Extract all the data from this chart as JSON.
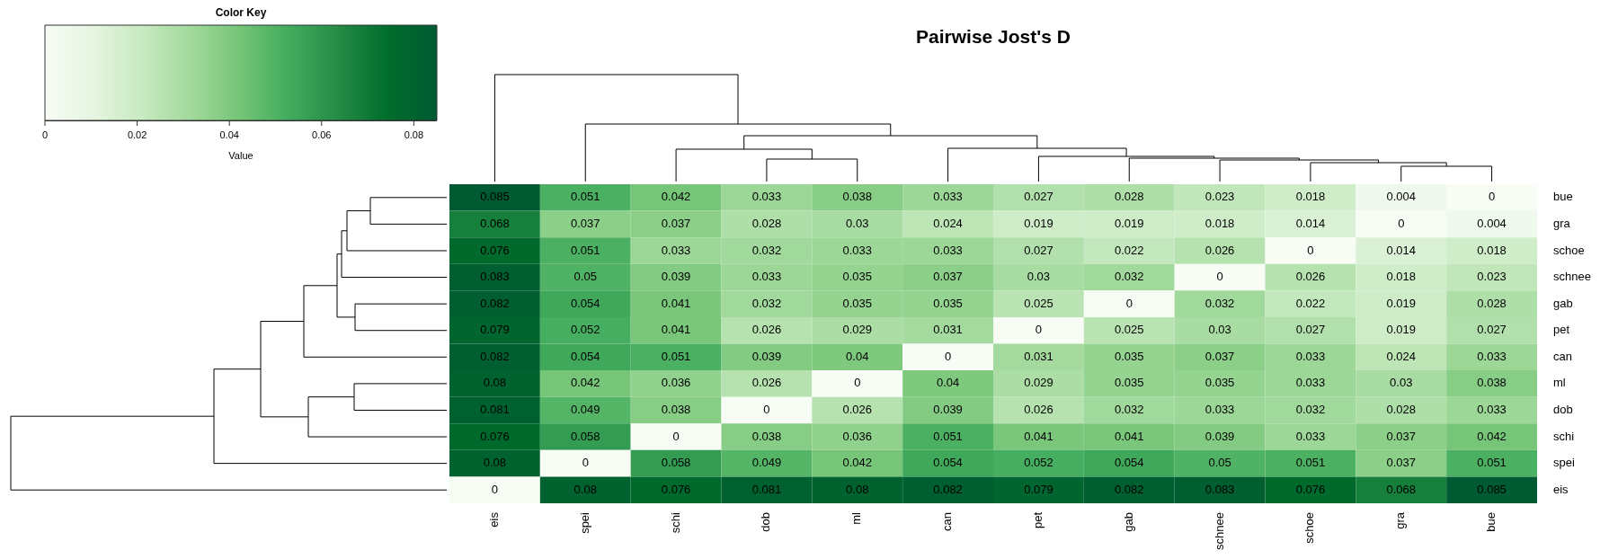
{
  "chart_data": {
    "type": "heatmap",
    "title": "Pairwise Jost's D",
    "legend_title": "Color Key",
    "clabel": "Value",
    "categories": [
      "eis",
      "spei",
      "schi",
      "dob",
      "ml",
      "can",
      "pet",
      "gab",
      "schnee",
      "schoe",
      "gra",
      "bue"
    ],
    "y_categories": [
      "bue",
      "gra",
      "schoe",
      "schnee",
      "gab",
      "pet",
      "can",
      "ml",
      "dob",
      "schi",
      "spei",
      "eis"
    ],
    "cells": [
      [
        0.085,
        0.051,
        0.042,
        0.033,
        0.038,
        0.033,
        0.027,
        0.028,
        0.023,
        0.018,
        0.004,
        0
      ],
      [
        0.068,
        0.037,
        0.037,
        0.028,
        0.03,
        0.024,
        0.019,
        0.019,
        0.018,
        0.014,
        0,
        0.004
      ],
      [
        0.076,
        0.051,
        0.033,
        0.032,
        0.033,
        0.033,
        0.027,
        0.022,
        0.026,
        0,
        0.014,
        0.018
      ],
      [
        0.083,
        0.05,
        0.039,
        0.033,
        0.035,
        0.037,
        0.03,
        0.032,
        0,
        0.026,
        0.018,
        0.023
      ],
      [
        0.082,
        0.054,
        0.041,
        0.032,
        0.035,
        0.035,
        0.025,
        0,
        0.032,
        0.022,
        0.019,
        0.028
      ],
      [
        0.079,
        0.052,
        0.041,
        0.026,
        0.029,
        0.031,
        0,
        0.025,
        0.03,
        0.027,
        0.019,
        0.027
      ],
      [
        0.082,
        0.054,
        0.051,
        0.039,
        0.04,
        0,
        0.031,
        0.035,
        0.037,
        0.033,
        0.024,
        0.033
      ],
      [
        0.08,
        0.042,
        0.036,
        0.026,
        0,
        0.04,
        0.029,
        0.035,
        0.035,
        0.033,
        0.03,
        0.038
      ],
      [
        0.081,
        0.049,
        0.038,
        0,
        0.026,
        0.039,
        0.026,
        0.032,
        0.033,
        0.032,
        0.028,
        0.033
      ],
      [
        0.076,
        0.058,
        0,
        0.038,
        0.036,
        0.051,
        0.041,
        0.041,
        0.039,
        0.033,
        0.037,
        0.042
      ],
      [
        0.08,
        0,
        0.058,
        0.049,
        0.042,
        0.054,
        0.052,
        0.054,
        0.05,
        0.051,
        0.037,
        0.051
      ],
      [
        0,
        0.08,
        0.076,
        0.081,
        0.08,
        0.082,
        0.079,
        0.082,
        0.083,
        0.076,
        0.068,
        0.085
      ]
    ],
    "clim": [
      0,
      0.085
    ],
    "cticks": [
      0,
      0.02,
      0.04,
      0.06,
      0.08
    ],
    "data_labels": true
  }
}
